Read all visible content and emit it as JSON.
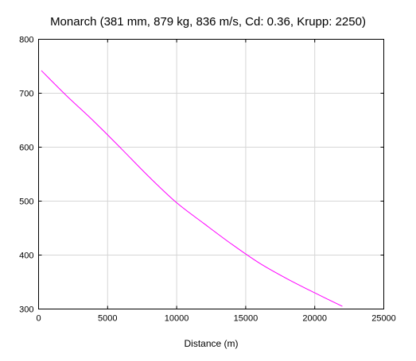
{
  "chart_data": {
    "type": "line",
    "title": "Monarch (381 mm, 879 kg, 836 m/s, Cd: 0.36, Krupp: 2250)",
    "xlabel": "Distance (m)",
    "ylabel": "",
    "xlim": [
      0,
      25000
    ],
    "ylim": [
      300,
      800
    ],
    "xticks": [
      "0",
      "5000",
      "10000",
      "15000",
      "20000",
      "25000"
    ],
    "yticks": [
      "300",
      "400",
      "500",
      "600",
      "700",
      "800"
    ],
    "grid": true,
    "legend": "none",
    "series": [
      {
        "color": "#ff00ff",
        "x": [
          200,
          2000,
          4000,
          6000,
          8000,
          10000,
          12000,
          14000,
          16000,
          18000,
          20000,
          22000
        ],
        "y": [
          742,
          696,
          648,
          597,
          545,
          497,
          458,
          420,
          385,
          356,
          330,
          305
        ]
      }
    ]
  },
  "colors": {
    "series_line": "#ff00ff",
    "grid": "#d6d6d6",
    "axis": "#000000"
  }
}
